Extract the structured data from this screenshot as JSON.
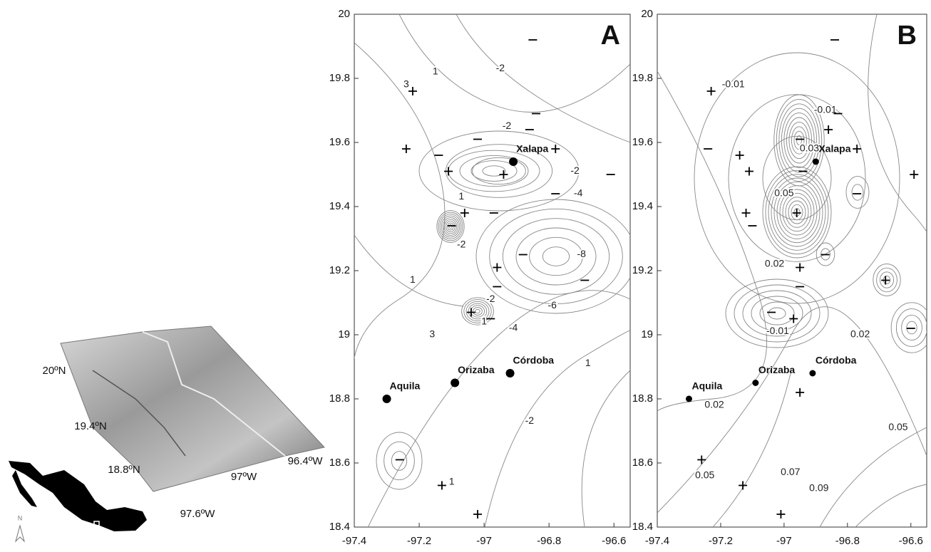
{
  "terrain": {
    "latitude_labels": [
      "20ºN",
      "19.4ºN",
      "18.8ºN"
    ],
    "longitude_labels": [
      "97.6ºW",
      "97ºW",
      "96.4ºW"
    ],
    "north_label": "N"
  },
  "chart_data": [
    {
      "type": "contour",
      "panel_label": "A",
      "xlim": [
        -97.4,
        -96.55
      ],
      "ylim": [
        18.4,
        20
      ],
      "xticks": [
        -97.4,
        -97.2,
        -97,
        -96.8,
        -96.6
      ],
      "yticks": [
        18.4,
        18.6,
        18.8,
        19,
        19.2,
        19.4,
        19.6,
        19.8,
        20
      ],
      "places": [
        {
          "name": "Xalapa",
          "x": -96.91,
          "y": 19.54
        },
        {
          "name": "Aquila",
          "x": -97.3,
          "y": 18.8
        },
        {
          "name": "Orizaba",
          "x": -97.09,
          "y": 18.85
        },
        {
          "name": "Córdoba",
          "x": -96.92,
          "y": 18.88
        }
      ],
      "plus_sites": [
        {
          "x": -97.22,
          "y": 19.76
        },
        {
          "x": -97.24,
          "y": 19.58
        },
        {
          "x": -97.11,
          "y": 19.51
        },
        {
          "x": -96.94,
          "y": 19.5
        },
        {
          "x": -96.78,
          "y": 19.58
        },
        {
          "x": -97.06,
          "y": 19.38
        },
        {
          "x": -96.96,
          "y": 19.21
        },
        {
          "x": -97.04,
          "y": 19.07
        },
        {
          "x": -97.13,
          "y": 18.53
        },
        {
          "x": -97.02,
          "y": 18.44
        }
      ],
      "minus_sites": [
        {
          "x": -96.85,
          "y": 19.92
        },
        {
          "x": -96.84,
          "y": 19.69
        },
        {
          "x": -96.86,
          "y": 19.64
        },
        {
          "x": -97.02,
          "y": 19.61
        },
        {
          "x": -97.14,
          "y": 19.56
        },
        {
          "x": -97.1,
          "y": 19.34
        },
        {
          "x": -96.97,
          "y": 19.38
        },
        {
          "x": -96.78,
          "y": 19.44
        },
        {
          "x": -96.61,
          "y": 19.5
        },
        {
          "x": -96.88,
          "y": 19.25
        },
        {
          "x": -96.69,
          "y": 19.17
        },
        {
          "x": -96.96,
          "y": 19.15
        },
        {
          "x": -96.98,
          "y": 19.05
        },
        {
          "x": -97.26,
          "y": 18.61
        }
      ],
      "contour_labels": [
        {
          "level": 1,
          "x": -97.15,
          "y": 19.82
        },
        {
          "level": -2,
          "x": -96.95,
          "y": 19.83
        },
        {
          "level": 3,
          "x": -97.24,
          "y": 19.78
        },
        {
          "level": -2,
          "x": -96.93,
          "y": 19.65
        },
        {
          "level": -2,
          "x": -96.72,
          "y": 19.51
        },
        {
          "level": -4,
          "x": -96.71,
          "y": 19.44
        },
        {
          "level": 1,
          "x": -97.07,
          "y": 19.43
        },
        {
          "level": -2,
          "x": -97.07,
          "y": 19.28
        },
        {
          "level": -8,
          "x": -96.7,
          "y": 19.25
        },
        {
          "level": 1,
          "x": -97.22,
          "y": 19.17
        },
        {
          "level": -2,
          "x": -96.98,
          "y": 19.11
        },
        {
          "level": -6,
          "x": -96.79,
          "y": 19.09
        },
        {
          "level": 1,
          "x": -97.0,
          "y": 19.04
        },
        {
          "level": 3,
          "x": -97.16,
          "y": 19.0
        },
        {
          "level": -4,
          "x": -96.91,
          "y": 19.02
        },
        {
          "level": 1,
          "x": -96.68,
          "y": 18.91
        },
        {
          "level": -2,
          "x": -96.86,
          "y": 18.73
        },
        {
          "level": 1,
          "x": -97.1,
          "y": 18.54
        }
      ]
    },
    {
      "type": "contour",
      "panel_label": "B",
      "xlim": [
        -97.4,
        -96.55
      ],
      "ylim": [
        18.4,
        20
      ],
      "xticks": [
        -97.4,
        -97.2,
        -97,
        -96.8,
        -96.6
      ],
      "yticks": [
        18.4,
        18.6,
        18.8,
        19,
        19.2,
        19.4,
        19.6,
        19.8,
        20
      ],
      "places": [
        {
          "name": "Xalapa",
          "x": -96.9,
          "y": 19.54
        },
        {
          "name": "Aquila",
          "x": -97.3,
          "y": 18.8
        },
        {
          "name": "Orizaba",
          "x": -97.09,
          "y": 18.85
        },
        {
          "name": "Córdoba",
          "x": -96.91,
          "y": 18.88
        }
      ],
      "plus_sites": [
        {
          "x": -97.23,
          "y": 19.76
        },
        {
          "x": -97.14,
          "y": 19.56
        },
        {
          "x": -97.11,
          "y": 19.51
        },
        {
          "x": -96.86,
          "y": 19.64
        },
        {
          "x": -96.77,
          "y": 19.58
        },
        {
          "x": -96.59,
          "y": 19.5
        },
        {
          "x": -97.12,
          "y": 19.38
        },
        {
          "x": -96.96,
          "y": 19.38
        },
        {
          "x": -96.95,
          "y": 19.21
        },
        {
          "x": -96.68,
          "y": 19.17
        },
        {
          "x": -96.97,
          "y": 19.05
        },
        {
          "x": -96.95,
          "y": 18.82
        },
        {
          "x": -97.26,
          "y": 18.61
        },
        {
          "x": -97.13,
          "y": 18.53
        },
        {
          "x": -97.01,
          "y": 18.44
        }
      ],
      "minus_sites": [
        {
          "x": -96.84,
          "y": 19.92
        },
        {
          "x": -97.24,
          "y": 19.58
        },
        {
          "x": -96.95,
          "y": 19.61
        },
        {
          "x": -96.83,
          "y": 19.69
        },
        {
          "x": -96.94,
          "y": 19.51
        },
        {
          "x": -96.77,
          "y": 19.44
        },
        {
          "x": -97.1,
          "y": 19.34
        },
        {
          "x": -96.87,
          "y": 19.25
        },
        {
          "x": -96.95,
          "y": 19.15
        },
        {
          "x": -97.04,
          "y": 19.07
        },
        {
          "x": -96.6,
          "y": 19.02
        }
      ],
      "contour_labels": [
        {
          "level": -0.01,
          "x": -97.16,
          "y": 19.78
        },
        {
          "level": -0.01,
          "x": -96.87,
          "y": 19.7
        },
        {
          "level": 0.03,
          "x": -96.92,
          "y": 19.58
        },
        {
          "level": 0.05,
          "x": -97.0,
          "y": 19.44
        },
        {
          "level": 0.02,
          "x": -97.03,
          "y": 19.22
        },
        {
          "level": -0.01,
          "x": -97.02,
          "y": 19.01
        },
        {
          "level": 0.02,
          "x": -96.76,
          "y": 19.0
        },
        {
          "level": 0.02,
          "x": -97.22,
          "y": 18.78
        },
        {
          "level": 0.05,
          "x": -96.64,
          "y": 18.71
        },
        {
          "level": 0.05,
          "x": -97.25,
          "y": 18.56
        },
        {
          "level": 0.07,
          "x": -96.98,
          "y": 18.57
        },
        {
          "level": 0.09,
          "x": -96.89,
          "y": 18.52
        }
      ]
    }
  ]
}
